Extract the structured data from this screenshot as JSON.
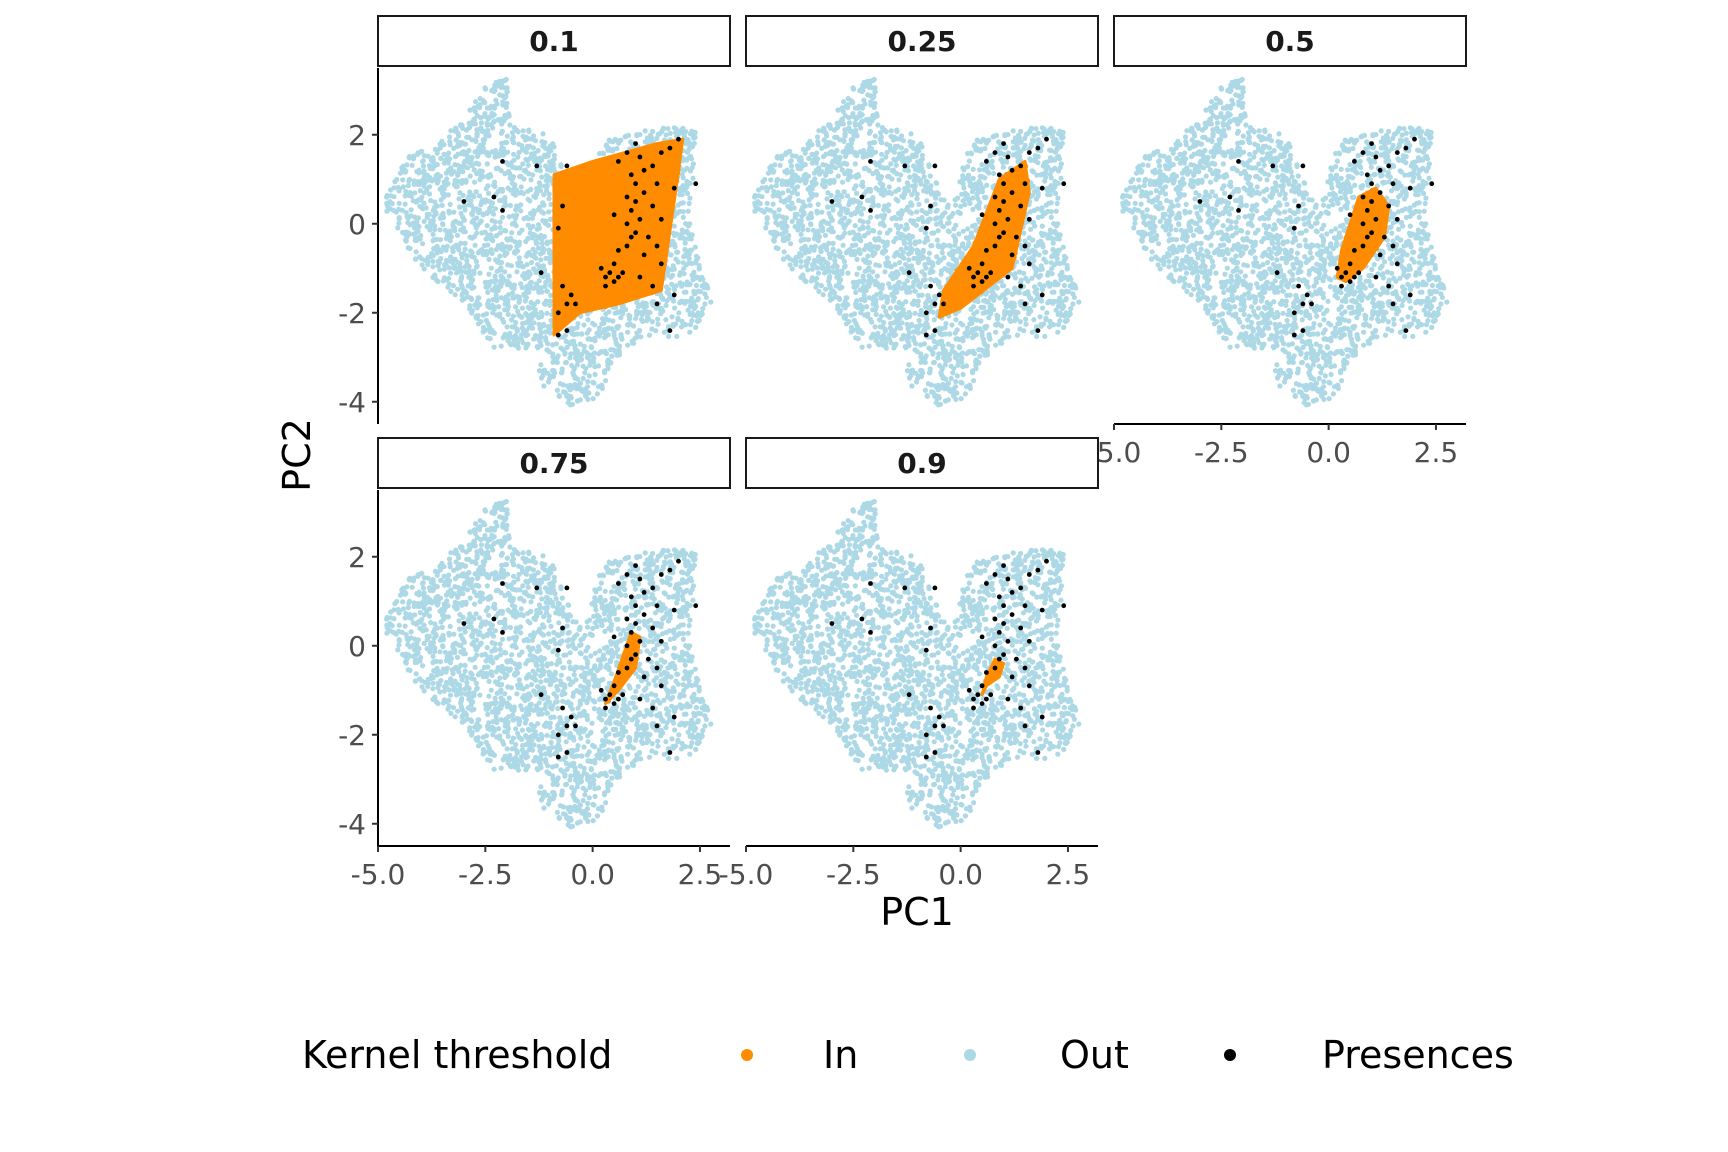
{
  "chart_data": {
    "type": "scatter",
    "facet_variable": "Kernel threshold",
    "facets": [
      "0.1",
      "0.25",
      "0.5",
      "0.75",
      "0.9"
    ],
    "xlabel": "PC1",
    "ylabel": "PC2",
    "xlim": [
      -5.0,
      3.2
    ],
    "ylim": [
      -4.5,
      3.5
    ],
    "x_ticks": [
      -5.0,
      -2.5,
      0.0,
      2.5
    ],
    "x_tick_labels": [
      "-5.0",
      "-2.5",
      "0.0",
      "2.5"
    ],
    "y_ticks": [
      -4,
      -2,
      0,
      2
    ],
    "y_tick_labels": [
      "-4",
      "-2",
      "0",
      "2"
    ],
    "grid": false,
    "legend": {
      "title": "Kernel threshold",
      "placement": "bottom",
      "entries": [
        {
          "label": "In",
          "color": "#ff8c00"
        },
        {
          "label": "Out",
          "color": "#add8e6"
        },
        {
          "label": "Presences",
          "color": "#000000"
        }
      ]
    },
    "background_cloud_outline": [
      [
        -4.8,
        0.7
      ],
      [
        -4.3,
        1.5
      ],
      [
        -3.5,
        1.9
      ],
      [
        -3.0,
        2.4
      ],
      [
        -2.4,
        3.2
      ],
      [
        -2.0,
        3.3
      ],
      [
        -1.9,
        2.2
      ],
      [
        -1.0,
        2.0
      ],
      [
        -0.6,
        1.0
      ],
      [
        -0.2,
        0.4
      ],
      [
        0.1,
        1.5
      ],
      [
        0.4,
        1.9
      ],
      [
        1.6,
        2.2
      ],
      [
        2.4,
        2.2
      ],
      [
        2.3,
        0.0
      ],
      [
        2.5,
        -1.0
      ],
      [
        2.8,
        -1.7
      ],
      [
        2.3,
        -2.5
      ],
      [
        1.0,
        -2.7
      ],
      [
        0.4,
        -3.2
      ],
      [
        0.2,
        -3.9
      ],
      [
        -0.5,
        -4.1
      ],
      [
        -1.2,
        -3.6
      ],
      [
        -1.4,
        -2.8
      ],
      [
        -2.3,
        -2.8
      ],
      [
        -3.0,
        -1.8
      ],
      [
        -4.0,
        -1.0
      ],
      [
        -4.8,
        0.2
      ]
    ],
    "in_regions": [
      {
        "facet": "0.1",
        "polygon": [
          [
            -0.9,
            1.1
          ],
          [
            0.0,
            1.4
          ],
          [
            1.5,
            1.8
          ],
          [
            2.1,
            1.9
          ],
          [
            1.9,
            0.5
          ],
          [
            1.6,
            -1.5
          ],
          [
            0.6,
            -1.8
          ],
          [
            -0.3,
            -2.0
          ],
          [
            -0.9,
            -2.5
          ],
          [
            -0.9,
            -0.5
          ]
        ]
      },
      {
        "facet": "0.25",
        "polygon": [
          [
            0.9,
            1.0
          ],
          [
            1.5,
            1.4
          ],
          [
            1.6,
            0.7
          ],
          [
            1.2,
            -1.0
          ],
          [
            0.0,
            -1.9
          ],
          [
            -0.5,
            -2.1
          ],
          [
            -0.4,
            -1.5
          ],
          [
            0.3,
            -0.5
          ]
        ]
      },
      {
        "facet": "0.5",
        "polygon": [
          [
            0.7,
            0.6
          ],
          [
            1.1,
            0.8
          ],
          [
            1.4,
            0.4
          ],
          [
            1.3,
            -0.3
          ],
          [
            0.8,
            -1.0
          ],
          [
            0.4,
            -1.3
          ],
          [
            0.2,
            -1.2
          ],
          [
            0.3,
            -0.6
          ]
        ]
      },
      {
        "facet": "0.75",
        "polygon": [
          [
            0.9,
            0.3
          ],
          [
            1.1,
            0.2
          ],
          [
            1.0,
            -0.5
          ],
          [
            0.6,
            -1.0
          ],
          [
            0.3,
            -1.3
          ],
          [
            0.5,
            -0.8
          ]
        ]
      },
      {
        "facet": "0.9",
        "polygon": [
          [
            0.8,
            -0.3
          ],
          [
            1.0,
            -0.4
          ],
          [
            0.9,
            -0.7
          ],
          [
            0.6,
            -0.9
          ],
          [
            0.5,
            -1.1
          ],
          [
            0.6,
            -0.7
          ]
        ]
      }
    ],
    "presences": [
      [
        -3.0,
        0.5
      ],
      [
        -2.1,
        1.4
      ],
      [
        -2.3,
        0.6
      ],
      [
        -2.1,
        0.3
      ],
      [
        -1.3,
        1.3
      ],
      [
        -0.6,
        1.3
      ],
      [
        -0.7,
        0.4
      ],
      [
        -0.8,
        -0.1
      ],
      [
        -1.2,
        -1.1
      ],
      [
        -0.7,
        -1.4
      ],
      [
        -0.5,
        -1.6
      ],
      [
        -0.6,
        -1.8
      ],
      [
        -0.4,
        -1.8
      ],
      [
        -0.8,
        -2.0
      ],
      [
        -0.6,
        -2.4
      ],
      [
        -0.8,
        -2.5
      ],
      [
        0.2,
        -1.0
      ],
      [
        0.3,
        -1.2
      ],
      [
        0.4,
        -1.1
      ],
      [
        0.5,
        -1.3
      ],
      [
        0.3,
        -1.4
      ],
      [
        0.6,
        -1.2
      ],
      [
        0.7,
        -1.1
      ],
      [
        0.5,
        -0.9
      ],
      [
        0.6,
        -0.6
      ],
      [
        0.8,
        -0.5
      ],
      [
        0.9,
        -0.3
      ],
      [
        1.0,
        -0.2
      ],
      [
        0.8,
        0.0
      ],
      [
        1.1,
        0.1
      ],
      [
        0.9,
        0.3
      ],
      [
        1.0,
        0.5
      ],
      [
        0.8,
        0.6
      ],
      [
        1.2,
        0.7
      ],
      [
        1.0,
        0.9
      ],
      [
        0.9,
        1.1
      ],
      [
        1.2,
        1.2
      ],
      [
        1.4,
        1.3
      ],
      [
        1.1,
        1.5
      ],
      [
        0.8,
        1.6
      ],
      [
        1.0,
        1.8
      ],
      [
        1.6,
        1.6
      ],
      [
        1.8,
        1.7
      ],
      [
        2.0,
        1.9
      ],
      [
        2.4,
        0.9
      ],
      [
        1.9,
        0.8
      ],
      [
        1.5,
        0.9
      ],
      [
        1.4,
        0.4
      ],
      [
        1.6,
        0.1
      ],
      [
        1.3,
        -0.3
      ],
      [
        1.5,
        -0.5
      ],
      [
        1.2,
        -0.7
      ],
      [
        1.6,
        -0.9
      ],
      [
        1.1,
        -1.2
      ],
      [
        1.4,
        -1.4
      ],
      [
        1.9,
        -1.6
      ],
      [
        1.5,
        -1.8
      ],
      [
        1.8,
        -2.4
      ],
      [
        0.6,
        1.4
      ],
      [
        0.5,
        0.2
      ]
    ]
  }
}
